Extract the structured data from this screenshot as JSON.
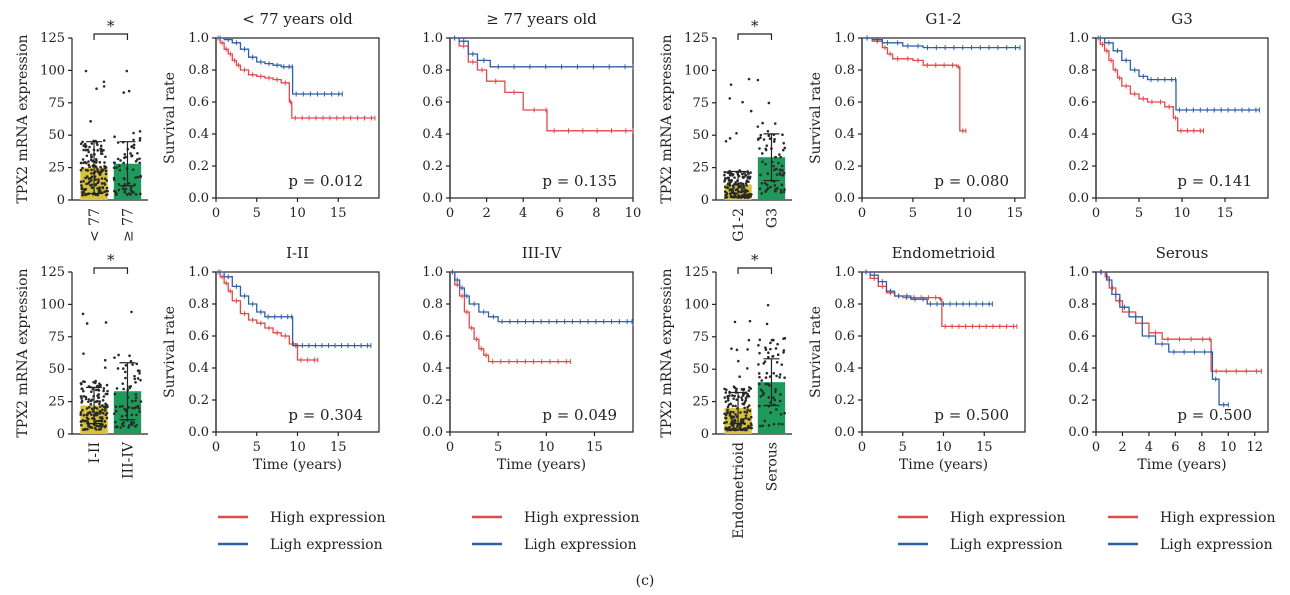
{
  "figure_label": "(c)",
  "colors": {
    "high": "#e04a4a",
    "low": "#2f5fa8",
    "bar_yellow": "#d6c23c",
    "bar_green": "#1e9a5a",
    "dot": "#2a2a2a"
  },
  "legend": {
    "high_label": "High expression",
    "low_label": "Ligh expression"
  },
  "chart_data": [
    {
      "type": "bar",
      "ylabel": "TPX2 mRNA expression",
      "categories": [
        "< 77",
        "≥ 77"
      ],
      "values": [
        25,
        28
      ],
      "sd": [
        20,
        17
      ],
      "ylim": [
        0,
        125
      ],
      "yticks": [
        0,
        25,
        50,
        75,
        100,
        125
      ],
      "significance": "*"
    },
    {
      "type": "line",
      "title": "< 77 years old",
      "ylabel": "Survival rate",
      "xlabel": "",
      "xlim": [
        0,
        20
      ],
      "xticks": [
        0,
        5,
        10,
        15
      ],
      "ylim": [
        0,
        1
      ],
      "yticks": [
        0.0,
        0.2,
        0.4,
        0.6,
        0.8,
        1.0
      ],
      "p_value": "p = 0.012",
      "series": [
        {
          "name": "High expression",
          "points": [
            [
              0,
              1
            ],
            [
              0.5,
              0.97
            ],
            [
              1,
              0.93
            ],
            [
              1.5,
              0.9
            ],
            [
              2,
              0.86
            ],
            [
              2.5,
              0.83
            ],
            [
              3,
              0.8
            ],
            [
              4,
              0.77
            ],
            [
              5,
              0.76
            ],
            [
              6,
              0.75
            ],
            [
              7,
              0.74
            ],
            [
              8,
              0.72
            ],
            [
              9,
              0.6
            ],
            [
              9.3,
              0.5
            ],
            [
              19.5,
              0.5
            ]
          ]
        },
        {
          "name": "Ligh expression",
          "points": [
            [
              0,
              1
            ],
            [
              1,
              0.99
            ],
            [
              2,
              0.97
            ],
            [
              3,
              0.93
            ],
            [
              4,
              0.88
            ],
            [
              5,
              0.85
            ],
            [
              6,
              0.84
            ],
            [
              7,
              0.83
            ],
            [
              8,
              0.82
            ],
            [
              9.3,
              0.82
            ],
            [
              9.4,
              0.65
            ],
            [
              15.5,
              0.65
            ]
          ]
        }
      ]
    },
    {
      "type": "line",
      "title": "≥ 77 years old",
      "ylabel": "",
      "xlabel": "",
      "xlim": [
        0,
        10
      ],
      "xticks": [
        0,
        2,
        4,
        6,
        8,
        10
      ],
      "ylim": [
        0,
        1
      ],
      "yticks": [
        0.0,
        0.2,
        0.4,
        0.6,
        0.8,
        1.0
      ],
      "p_value": "p = 0.135",
      "series": [
        {
          "name": "High expression",
          "points": [
            [
              0,
              1
            ],
            [
              0.5,
              0.95
            ],
            [
              1,
              0.85
            ],
            [
              1.5,
              0.8
            ],
            [
              2,
              0.73
            ],
            [
              3,
              0.66
            ],
            [
              4,
              0.55
            ],
            [
              5.2,
              0.55
            ],
            [
              5.3,
              0.42
            ],
            [
              10,
              0.42
            ]
          ]
        },
        {
          "name": "Ligh expression",
          "points": [
            [
              0,
              1
            ],
            [
              0.5,
              0.98
            ],
            [
              1,
              0.9
            ],
            [
              1.5,
              0.86
            ],
            [
              2.2,
              0.82
            ],
            [
              10,
              0.82
            ]
          ]
        }
      ]
    },
    {
      "type": "bar",
      "ylabel": "TPX2 mRNA expression",
      "categories": [
        "G1-2",
        "G3"
      ],
      "values": [
        12,
        33
      ],
      "sd": [
        10,
        18
      ],
      "ylim": [
        0,
        125
      ],
      "yticks": [
        0,
        25,
        50,
        75,
        100,
        125
      ],
      "significance": "*"
    },
    {
      "type": "line",
      "title": "G1-2",
      "ylabel": "Survival rate",
      "xlabel": "",
      "xlim": [
        0,
        16
      ],
      "xticks": [
        0,
        5,
        10,
        15
      ],
      "ylim": [
        0,
        1
      ],
      "yticks": [
        0.0,
        0.2,
        0.4,
        0.6,
        0.8,
        1.0
      ],
      "p_value": "p = 0.080",
      "series": [
        {
          "name": "High expression",
          "points": [
            [
              0,
              1
            ],
            [
              1,
              0.98
            ],
            [
              2,
              0.94
            ],
            [
              2.5,
              0.9
            ],
            [
              3,
              0.87
            ],
            [
              5,
              0.86
            ],
            [
              6,
              0.83
            ],
            [
              9.3,
              0.82
            ],
            [
              9.6,
              0.42
            ],
            [
              10.2,
              0.42
            ]
          ]
        },
        {
          "name": "Ligh expression",
          "points": [
            [
              0,
              1
            ],
            [
              1,
              0.99
            ],
            [
              2,
              0.97
            ],
            [
              4,
              0.95
            ],
            [
              6,
              0.94
            ],
            [
              15.5,
              0.94
            ]
          ]
        }
      ]
    },
    {
      "type": "line",
      "title": "G3",
      "ylabel": "",
      "xlabel": "",
      "xlim": [
        0,
        20
      ],
      "xticks": [
        0,
        5,
        10,
        15
      ],
      "ylim": [
        0,
        1
      ],
      "yticks": [
        0.0,
        0.2,
        0.4,
        0.6,
        0.8,
        1.0
      ],
      "p_value": "p = 0.141",
      "series": [
        {
          "name": "High expression",
          "points": [
            [
              0,
              1
            ],
            [
              0.5,
              0.96
            ],
            [
              1,
              0.92
            ],
            [
              1.5,
              0.86
            ],
            [
              2,
              0.8
            ],
            [
              2.5,
              0.75
            ],
            [
              3,
              0.7
            ],
            [
              4,
              0.65
            ],
            [
              5,
              0.62
            ],
            [
              6,
              0.6
            ],
            [
              8,
              0.57
            ],
            [
              9,
              0.5
            ],
            [
              9.5,
              0.42
            ],
            [
              12.5,
              0.42
            ]
          ]
        },
        {
          "name": "Ligh expression",
          "points": [
            [
              0,
              1
            ],
            [
              1,
              0.97
            ],
            [
              2,
              0.92
            ],
            [
              3,
              0.86
            ],
            [
              4,
              0.8
            ],
            [
              5,
              0.76
            ],
            [
              6,
              0.74
            ],
            [
              9.2,
              0.74
            ],
            [
              9.3,
              0.55
            ],
            [
              19,
              0.55
            ]
          ]
        }
      ]
    },
    {
      "type": "bar",
      "ylabel": "TPX2 mRNA expression",
      "categories": [
        "I-II",
        "III-IV"
      ],
      "values": [
        22,
        33
      ],
      "sd": [
        14,
        22
      ],
      "ylim": [
        0,
        125
      ],
      "yticks": [
        0,
        25,
        50,
        75,
        100,
        125
      ],
      "significance": "*"
    },
    {
      "type": "line",
      "title": "I-II",
      "ylabel": "Survival rate",
      "xlabel": "Time (years)",
      "xlim": [
        0,
        20
      ],
      "xticks": [
        0,
        5,
        10,
        15
      ],
      "ylim": [
        0,
        1
      ],
      "yticks": [
        0.0,
        0.2,
        0.4,
        0.6,
        0.8,
        1.0
      ],
      "p_value": "p = 0.304",
      "series": [
        {
          "name": "High expression",
          "points": [
            [
              0,
              1
            ],
            [
              0.5,
              0.97
            ],
            [
              1,
              0.93
            ],
            [
              1.5,
              0.88
            ],
            [
              2,
              0.82
            ],
            [
              3,
              0.74
            ],
            [
              4,
              0.7
            ],
            [
              5,
              0.68
            ],
            [
              6,
              0.65
            ],
            [
              7,
              0.62
            ],
            [
              8,
              0.6
            ],
            [
              9,
              0.55
            ],
            [
              10,
              0.45
            ],
            [
              12.5,
              0.45
            ]
          ]
        },
        {
          "name": "Ligh expression",
          "points": [
            [
              0,
              1
            ],
            [
              1,
              0.97
            ],
            [
              2,
              0.91
            ],
            [
              3,
              0.85
            ],
            [
              4,
              0.8
            ],
            [
              5,
              0.75
            ],
            [
              6,
              0.72
            ],
            [
              9.2,
              0.72
            ],
            [
              9.4,
              0.54
            ],
            [
              19,
              0.54
            ]
          ]
        }
      ]
    },
    {
      "type": "line",
      "title": "III-IV",
      "ylabel": "",
      "xlabel": "Time (years)",
      "xlim": [
        0,
        19
      ],
      "xticks": [
        0,
        5,
        10,
        15
      ],
      "ylim": [
        0,
        1
      ],
      "yticks": [
        0.0,
        0.2,
        0.4,
        0.6,
        0.8,
        1.0
      ],
      "p_value": "p = 0.049",
      "series": [
        {
          "name": "High expression",
          "points": [
            [
              0,
              1
            ],
            [
              0.5,
              0.92
            ],
            [
              1,
              0.85
            ],
            [
              1.5,
              0.75
            ],
            [
              2,
              0.65
            ],
            [
              2.5,
              0.58
            ],
            [
              3,
              0.52
            ],
            [
              3.5,
              0.48
            ],
            [
              4,
              0.44
            ],
            [
              12.5,
              0.44
            ]
          ]
        },
        {
          "name": "Ligh expression",
          "points": [
            [
              0,
              1
            ],
            [
              0.5,
              0.95
            ],
            [
              1,
              0.9
            ],
            [
              1.5,
              0.85
            ],
            [
              2,
              0.8
            ],
            [
              3,
              0.75
            ],
            [
              4,
              0.72
            ],
            [
              5,
              0.69
            ],
            [
              18.8,
              0.69
            ],
            [
              19,
              0.68
            ]
          ]
        }
      ]
    },
    {
      "type": "bar",
      "ylabel": "TPX2 mRNA expression",
      "categories": [
        "Endometrioid",
        "Serous"
      ],
      "values": [
        20,
        40
      ],
      "sd": [
        12,
        18
      ],
      "ylim": [
        0,
        125
      ],
      "yticks": [
        0,
        25,
        50,
        75,
        100,
        125
      ],
      "significance": "*"
    },
    {
      "type": "line",
      "title": "Endometrioid",
      "ylabel": "Survival rate",
      "xlabel": "Time (years)",
      "xlim": [
        0,
        20
      ],
      "xticks": [
        0,
        5,
        10,
        15
      ],
      "ylim": [
        0,
        1
      ],
      "yticks": [
        0.0,
        0.2,
        0.4,
        0.6,
        0.8,
        1.0
      ],
      "p_value": "p = 0.500",
      "series": [
        {
          "name": "High expression",
          "points": [
            [
              0,
              1
            ],
            [
              1,
              0.96
            ],
            [
              2,
              0.91
            ],
            [
              3,
              0.87
            ],
            [
              4,
              0.85
            ],
            [
              5,
              0.84
            ],
            [
              9.5,
              0.83
            ],
            [
              9.8,
              0.66
            ],
            [
              19,
              0.66
            ]
          ]
        },
        {
          "name": "Ligh expression",
          "points": [
            [
              0,
              1
            ],
            [
              1,
              0.98
            ],
            [
              2,
              0.94
            ],
            [
              3,
              0.88
            ],
            [
              4,
              0.85
            ],
            [
              6,
              0.83
            ],
            [
              8,
              0.8
            ],
            [
              16,
              0.8
            ]
          ]
        }
      ]
    },
    {
      "type": "line",
      "title": "Serous",
      "ylabel": "",
      "xlabel": "Time (years)",
      "xlim": [
        0,
        13
      ],
      "xticks": [
        0,
        2,
        4,
        6,
        8,
        10,
        12
      ],
      "ylim": [
        0,
        1
      ],
      "yticks": [
        0.0,
        0.2,
        0.4,
        0.6,
        0.8,
        1.0
      ],
      "p_value": "p = 0.500",
      "series": [
        {
          "name": "High expression",
          "points": [
            [
              0,
              1
            ],
            [
              0.7,
              0.97
            ],
            [
              1,
              0.9
            ],
            [
              1.5,
              0.82
            ],
            [
              2,
              0.75
            ],
            [
              3,
              0.68
            ],
            [
              4,
              0.62
            ],
            [
              5,
              0.58
            ],
            [
              8.5,
              0.58
            ],
            [
              8.7,
              0.38
            ],
            [
              12.5,
              0.38
            ]
          ]
        },
        {
          "name": "Ligh expression",
          "points": [
            [
              0,
              1
            ],
            [
              0.8,
              0.95
            ],
            [
              1.2,
              0.86
            ],
            [
              1.8,
              0.78
            ],
            [
              2.5,
              0.72
            ],
            [
              3.5,
              0.6
            ],
            [
              4.5,
              0.55
            ],
            [
              5.5,
              0.5
            ],
            [
              8.6,
              0.5
            ],
            [
              8.8,
              0.33
            ],
            [
              9.3,
              0.17
            ],
            [
              10,
              0.17
            ]
          ]
        }
      ]
    }
  ]
}
